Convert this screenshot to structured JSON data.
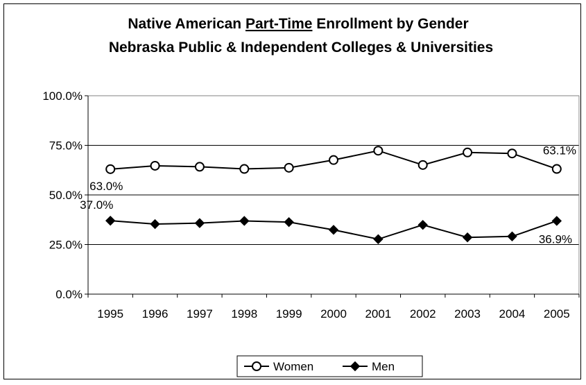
{
  "chart_data": {
    "type": "line",
    "title_prefix": "Native American ",
    "title_underlined": "Part-Time",
    "title_suffix": " Enrollment by Gender",
    "subtitle": "Nebraska Public & Independent Colleges & Universities",
    "categories": [
      "1995",
      "1996",
      "1997",
      "1998",
      "1999",
      "2000",
      "2001",
      "2002",
      "2003",
      "2004",
      "2005"
    ],
    "series": [
      {
        "name": "Women",
        "marker": "circle-open",
        "values": [
          63.0,
          64.7,
          64.2,
          63.1,
          63.7,
          67.6,
          72.3,
          65.1,
          71.4,
          70.9,
          63.1
        ]
      },
      {
        "name": "Men",
        "marker": "diamond-filled",
        "values": [
          37.0,
          35.3,
          35.8,
          36.9,
          36.3,
          32.4,
          27.7,
          34.9,
          28.6,
          29.1,
          36.9
        ]
      }
    ],
    "ylim": [
      0,
      100
    ],
    "y_ticks": [
      "0.0%",
      "25.0%",
      "50.0%",
      "75.0%",
      "100.0%"
    ],
    "data_labels": {
      "women_first": "63.0%",
      "women_last": "63.1%",
      "men_first": "37.0%",
      "men_last": "36.9%"
    },
    "grid": true,
    "legend_position": "bottom",
    "colors": {
      "line": "#000000",
      "plot_border": "#808080",
      "grid": "#000000"
    }
  }
}
